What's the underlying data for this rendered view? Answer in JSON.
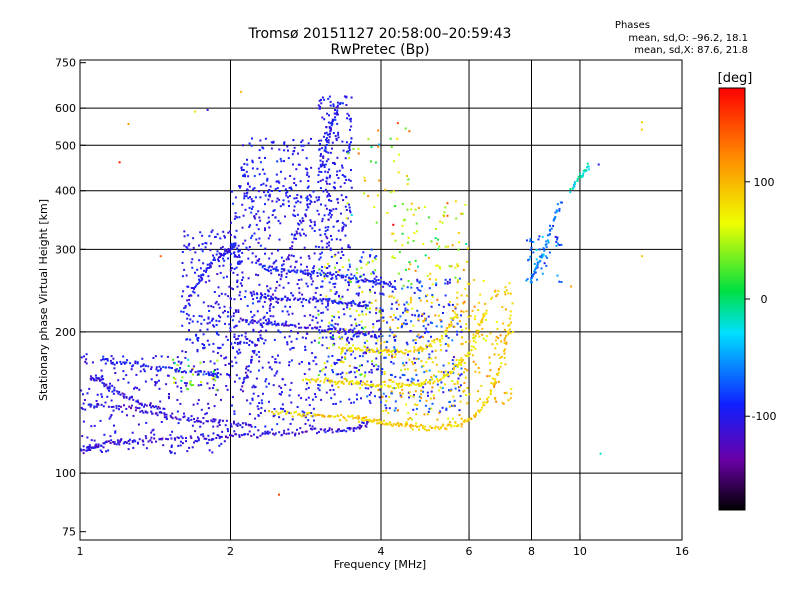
{
  "header": {
    "title_line1": "Tromsø 20151127 20:58:00–20:59:43",
    "title_line2": "RwPretec (Bp)",
    "phases_label": "Phases",
    "phase_o": "mean, sd,O: –96.2, 18.1",
    "phase_x": "mean, sd,X: 87.6, 21.8"
  },
  "chart_data": {
    "type": "scatter",
    "xlabel": "Frequency [MHz]",
    "ylabel": "Stationary phase Virtual Height [km]",
    "x_scale": "log",
    "y_scale": "log",
    "xlim": [
      1,
      16
    ],
    "ylim": [
      72,
      760
    ],
    "x_ticks": [
      1,
      2,
      4,
      6,
      8,
      10,
      16
    ],
    "y_ticks": [
      75,
      100,
      200,
      300,
      400,
      500,
      600,
      750
    ],
    "x_gridlines": [
      2,
      4,
      6,
      8,
      10
    ],
    "y_gridlines": [
      100,
      200,
      300,
      400,
      500,
      600
    ],
    "grid": true,
    "colorbar": {
      "label": "[deg]",
      "ticks": [
        100,
        0,
        -100
      ],
      "range": [
        -180,
        180
      ]
    },
    "traces": [
      {
        "x": [
          1.0,
          1.05,
          1.1,
          1.2,
          1.3,
          1.5,
          1.8,
          2.0,
          2.3,
          2.6,
          3.0,
          3.3,
          3.6,
          3.8
        ],
        "y": [
          112,
          113,
          115,
          116,
          117,
          118,
          119,
          120,
          121,
          122,
          123,
          124,
          125,
          128
        ],
        "phase": -110
      },
      {
        "x": [
          1.0,
          1.1,
          1.3,
          1.5,
          1.7,
          2.0,
          2.2
        ],
        "y": [
          138,
          140,
          137,
          132,
          130,
          128,
          126
        ],
        "phase": -110
      },
      {
        "x": [
          1.05,
          1.1,
          1.15,
          1.25,
          1.35,
          1.5
        ],
        "y": [
          160,
          158,
          150,
          145,
          140,
          135
        ],
        "phase": -105
      },
      {
        "x": [
          1.1,
          1.2,
          1.4,
          1.6,
          1.8,
          1.9
        ],
        "y": [
          175,
          172,
          168,
          165,
          163,
          162
        ],
        "phase": -95
      },
      {
        "x": [
          2.4,
          2.7,
          3.0,
          3.3,
          3.6,
          3.8,
          4.0,
          4.3,
          4.6,
          5.0,
          5.4,
          5.8,
          6.2,
          6.6,
          7.0,
          7.3
        ],
        "y": [
          135,
          134,
          133,
          132,
          131,
          130,
          128,
          127,
          126,
          125,
          126,
          128,
          133,
          145,
          175,
          215
        ],
        "phase": 90
      },
      {
        "x": [
          2.8,
          3.1,
          3.4,
          3.7,
          4.0,
          4.4,
          4.8,
          5.2,
          5.6,
          6.0,
          6.3,
          6.5
        ],
        "y": [
          158,
          157,
          156,
          155,
          154,
          153,
          155,
          158,
          166,
          180,
          205,
          225
        ],
        "phase": 80
      },
      {
        "x": [
          3.3,
          3.6,
          3.9,
          4.2,
          4.6,
          5.0,
          5.4,
          5.7
        ],
        "y": [
          185,
          183,
          182,
          181,
          182,
          186,
          200,
          220
        ],
        "phase": 85
      },
      {
        "x": [
          2.1,
          2.3,
          2.5,
          2.8,
          3.1,
          3.4,
          3.7,
          4.0
        ],
        "y": [
          212,
          210,
          208,
          205,
          203,
          200,
          198,
          195
        ],
        "phase": -105
      },
      {
        "x": [
          2.2,
          2.4,
          2.6,
          2.9,
          3.2,
          3.5,
          3.8
        ],
        "y": [
          240,
          238,
          236,
          234,
          232,
          230,
          228
        ],
        "phase": -100
      },
      {
        "x": [
          2.3,
          2.5,
          2.8,
          3.1,
          3.4,
          3.7,
          4.0,
          4.3
        ],
        "y": [
          275,
          272,
          268,
          265,
          262,
          258,
          255,
          250
        ],
        "phase": -95
      },
      {
        "x": [
          2.1,
          2.2,
          2.3,
          2.5,
          2.7,
          2.9
        ],
        "y": [
          150,
          175,
          200,
          260,
          320,
          380
        ],
        "phase": -110
      },
      {
        "x": [
          1.6,
          1.7,
          1.8,
          1.9,
          2.0,
          2.05
        ],
        "y": [
          220,
          250,
          275,
          290,
          300,
          310
        ],
        "phase": -100
      },
      {
        "x": [
          3.0,
          3.1,
          3.2,
          3.3
        ],
        "y": [
          420,
          500,
          560,
          600
        ],
        "phase": -100
      },
      {
        "x": [
          8.0,
          8.2,
          8.5,
          8.8,
          9.2
        ],
        "y": [
          260,
          275,
          300,
          340,
          380
        ],
        "phase": -60
      },
      {
        "x": [
          9.6,
          10.0,
          10.5
        ],
        "y": [
          400,
          430,
          455
        ],
        "phase": -20
      }
    ],
    "clusters": [
      {
        "x": [
          1.0,
          2.0
        ],
        "y": [
          110,
          180
        ],
        "n": 260,
        "phase": -105,
        "spread": 12
      },
      {
        "x": [
          1.6,
          2.1
        ],
        "y": [
          180,
          330
        ],
        "n": 230,
        "phase": -100,
        "spread": 14
      },
      {
        "x": [
          2.0,
          3.0
        ],
        "y": [
          120,
          420
        ],
        "n": 480,
        "phase": -100,
        "spread": 14
      },
      {
        "x": [
          2.1,
          2.9
        ],
        "y": [
          350,
          520
        ],
        "n": 140,
        "phase": -95,
        "spread": 15
      },
      {
        "x": [
          3.0,
          3.5
        ],
        "y": [
          300,
          640
        ],
        "n": 220,
        "phase": -100,
        "spread": 12
      },
      {
        "x": [
          3.0,
          4.0
        ],
        "y": [
          140,
          300
        ],
        "n": 250,
        "phase": -95,
        "spread": 20
      },
      {
        "x": [
          4.0,
          5.8
        ],
        "y": [
          135,
          260
        ],
        "n": 240,
        "phase": -85,
        "spread": 25
      },
      {
        "x": [
          3.0,
          4.0
        ],
        "y": [
          150,
          290
        ],
        "n": 110,
        "phase": 60,
        "spread": 40
      },
      {
        "x": [
          4.0,
          6.0
        ],
        "y": [
          130,
          240
        ],
        "n": 170,
        "phase": 90,
        "spread": 30
      },
      {
        "x": [
          4.2,
          6.0
        ],
        "y": [
          250,
          380
        ],
        "n": 90,
        "phase": 60,
        "spread": 60
      },
      {
        "x": [
          5.6,
          7.4
        ],
        "y": [
          140,
          260
        ],
        "n": 140,
        "phase": 95,
        "spread": 25
      },
      {
        "x": [
          3.4,
          4.6
        ],
        "y": [
          330,
          560
        ],
        "n": 40,
        "phase": 70,
        "spread": 80
      },
      {
        "x": [
          1.5,
          1.9
        ],
        "y": [
          150,
          175
        ],
        "n": 35,
        "phase": 30,
        "spread": 60
      },
      {
        "x": [
          7.8,
          9.2
        ],
        "y": [
          255,
          320
        ],
        "n": 45,
        "phase": -65,
        "spread": 30
      }
    ],
    "scattered_points": [
      {
        "x": 1.25,
        "y": 555,
        "phase": 110
      },
      {
        "x": 1.2,
        "y": 460,
        "phase": 170
      },
      {
        "x": 2.5,
        "y": 90,
        "phase": 150
      },
      {
        "x": 13.3,
        "y": 560,
        "phase": 90
      },
      {
        "x": 13.3,
        "y": 540,
        "phase": 90
      },
      {
        "x": 13.3,
        "y": 290,
        "phase": 95
      },
      {
        "x": 11.0,
        "y": 110,
        "phase": -20
      },
      {
        "x": 9.6,
        "y": 250,
        "phase": 110
      },
      {
        "x": 10.9,
        "y": 455,
        "phase": -100
      },
      {
        "x": 1.8,
        "y": 595,
        "phase": -100
      },
      {
        "x": 1.7,
        "y": 590,
        "phase": 80
      },
      {
        "x": 2.1,
        "y": 650,
        "phase": 100
      },
      {
        "x": 1.45,
        "y": 290,
        "phase": 140
      }
    ]
  }
}
